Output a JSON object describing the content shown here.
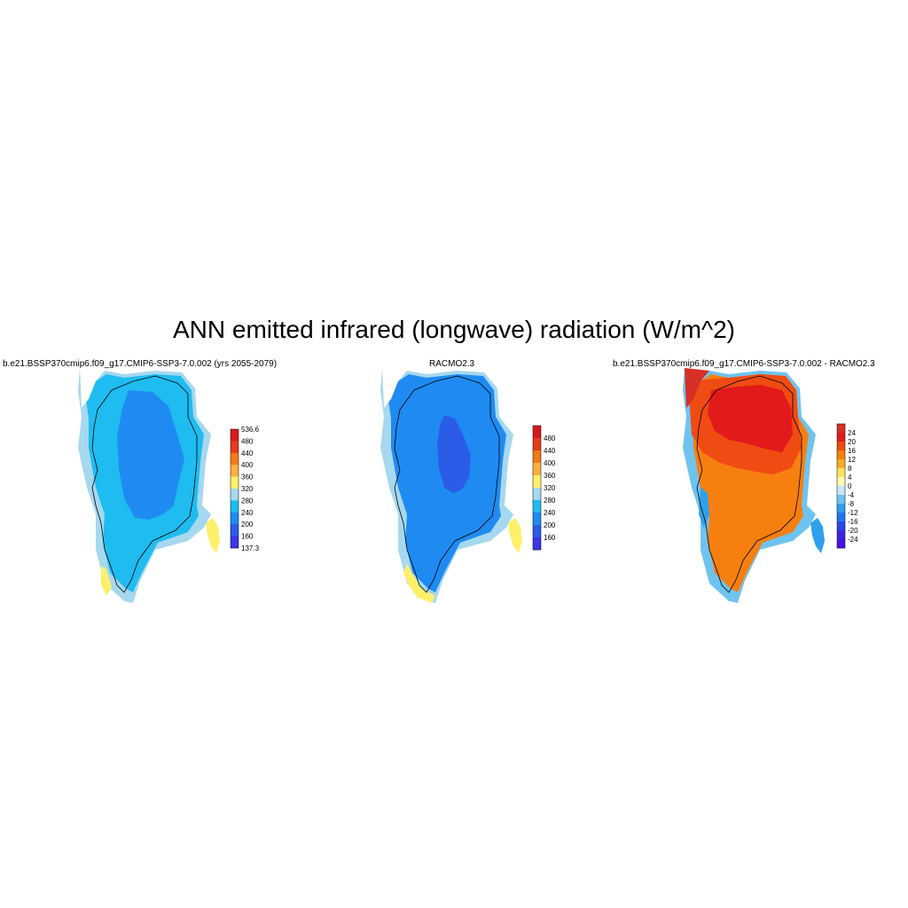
{
  "title": "ANN emitted infrared (longwave) radiation (W/m^2)",
  "panels": [
    {
      "title": "b.e21.BSSP370cmip6.f09_g17.CMIP6-SSP3-7.0.002 (yrs 2055-2079)",
      "colorbar": {
        "labels": [
          "536.6",
          "480",
          "440",
          "400",
          "360",
          "320",
          "280",
          "240",
          "200",
          "160",
          "137.3"
        ],
        "colors": [
          "#d7191c",
          "#e53b1e",
          "#f37a17",
          "#fbb040",
          "#fff06a",
          "#a6d8ef",
          "#1ebcf0",
          "#1f8bf2",
          "#2a5ce8",
          "#3b33e6"
        ]
      },
      "interior_level": "240",
      "ring_level": "280",
      "coast_level": "320"
    },
    {
      "title": "RACMO2.3",
      "colorbar": {
        "labels": [
          "480",
          "440",
          "400",
          "360",
          "320",
          "280",
          "240",
          "200",
          "160"
        ],
        "colors": [
          "#d7191c",
          "#e53b1e",
          "#f37a17",
          "#fbb040",
          "#fff06a",
          "#a6d8ef",
          "#1ebcf0",
          "#1f8bf2",
          "#2a5ce8",
          "#3b33e6"
        ]
      },
      "interior_level": "200",
      "ring_level": "240",
      "coast_level": "320"
    },
    {
      "title": "b.e21.BSSP370cmip6.f09_g17.CMIP6-SSP3-7.0.002 - RACMO2.3",
      "colorbar": {
        "labels": [
          "24",
          "20",
          "16",
          "12",
          "8",
          "4",
          "0",
          "-4",
          "-8",
          "-12",
          "-16",
          "-20",
          "-24"
        ],
        "colors": [
          "#d62f27",
          "#e31a1c",
          "#f04b12",
          "#f77f10",
          "#fbad22",
          "#fde25a",
          "#fff8b0",
          "#c5e7f6",
          "#6fc3ef",
          "#2ea0ee",
          "#1f77f0",
          "#2a48e6",
          "#3b27e3",
          "#4a10e8"
        ]
      },
      "interior_level": "16",
      "ring_level": "12",
      "coast_level": "-8"
    }
  ]
}
